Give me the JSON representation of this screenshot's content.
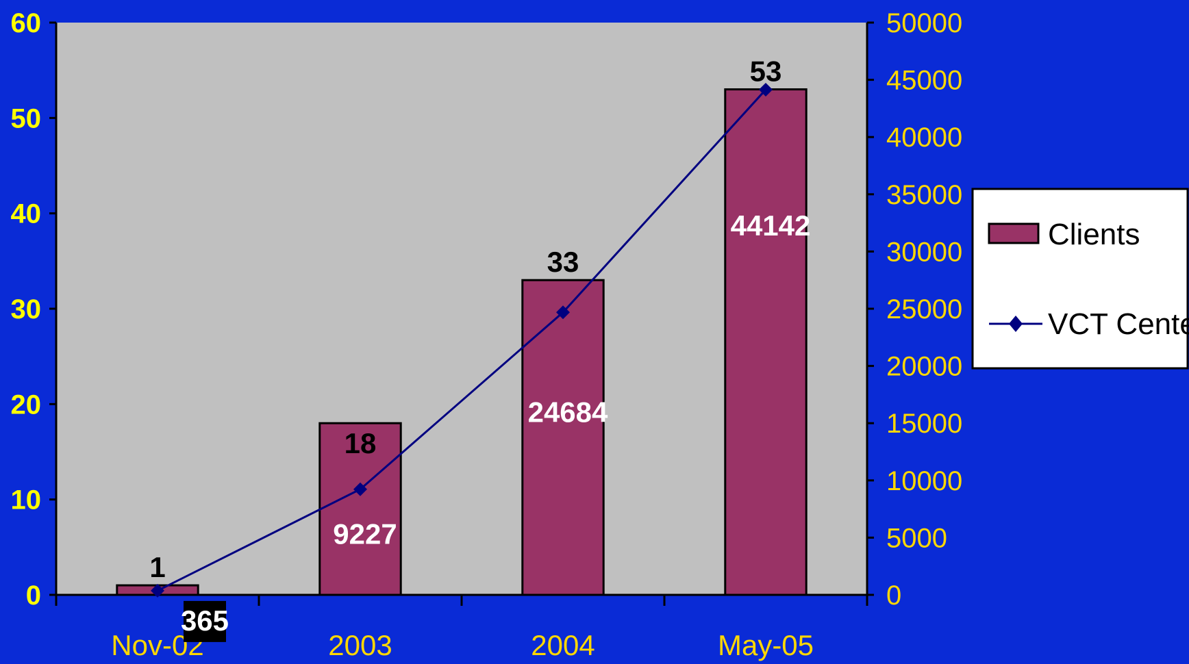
{
  "colors": {
    "background": "#0a2bd6",
    "plot_area": "#c0c0c0",
    "bar_fill": "#993366",
    "line": "#000080",
    "left_axis_text": "#ffff00",
    "right_axis_text": "#ffd700",
    "category_text": "#ffd700",
    "legend_bg": "#ffffff"
  },
  "chart_data": {
    "type": "bar",
    "categories": [
      "Nov-02",
      "2003",
      "2004",
      "May-05"
    ],
    "left_axis": {
      "ylim": [
        0,
        60
      ],
      "ticks": [
        "0",
        "10",
        "20",
        "30",
        "40",
        "50",
        "60"
      ]
    },
    "right_axis": {
      "ylim": [
        0,
        50000
      ],
      "ticks": [
        "0",
        "5000",
        "10000",
        "15000",
        "20000",
        "25000",
        "30000",
        "35000",
        "40000",
        "45000",
        "50000"
      ]
    },
    "series": [
      {
        "name": "Clients",
        "kind": "bar",
        "axis": "left",
        "values": [
          1,
          18,
          33,
          53
        ],
        "labels": [
          "1",
          "18",
          "33",
          "53"
        ]
      },
      {
        "name": "VCT Center",
        "kind": "line",
        "axis": "right",
        "marker": "diamond",
        "values": [
          365,
          9227,
          24684,
          44142
        ],
        "labels": [
          "365",
          "9227",
          "24684",
          "44142"
        ]
      }
    ],
    "legend_position": "right",
    "grid": false
  }
}
